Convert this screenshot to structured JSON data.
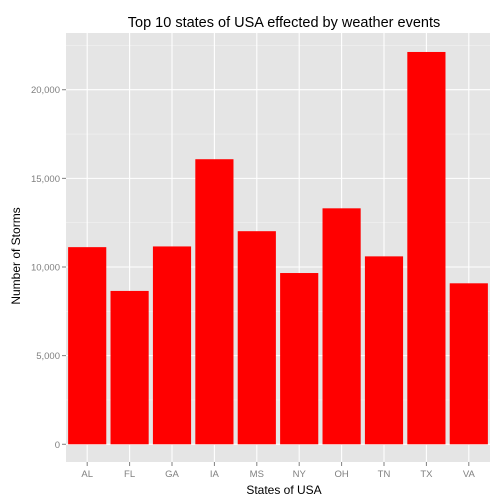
{
  "chart_data": {
    "type": "bar",
    "title": "Top 10 states of USA effected by weather events",
    "xlabel": "States of USA",
    "ylabel": "Number of Storms",
    "categories": [
      "AL",
      "FL",
      "GA",
      "IA",
      "MS",
      "NY",
      "OH",
      "TN",
      "TX",
      "VA"
    ],
    "values": [
      11120,
      8650,
      11160,
      16080,
      12020,
      9660,
      13310,
      10600,
      22130,
      9080
    ],
    "ylim": [
      -1000,
      23200
    ],
    "yticks": [
      0,
      5000,
      10000,
      15000,
      20000
    ],
    "ytick_labels": [
      "0",
      "5,000",
      "10,000",
      "15,000",
      "20,000"
    ],
    "grid": true,
    "legend": "none",
    "colors": {
      "bar": "#ff0000",
      "panel_background": "#e5e5e5",
      "grid_major": "#ffffff",
      "grid_minor": "#f2f2f2",
      "tick_label": "#7f7f7f"
    }
  }
}
